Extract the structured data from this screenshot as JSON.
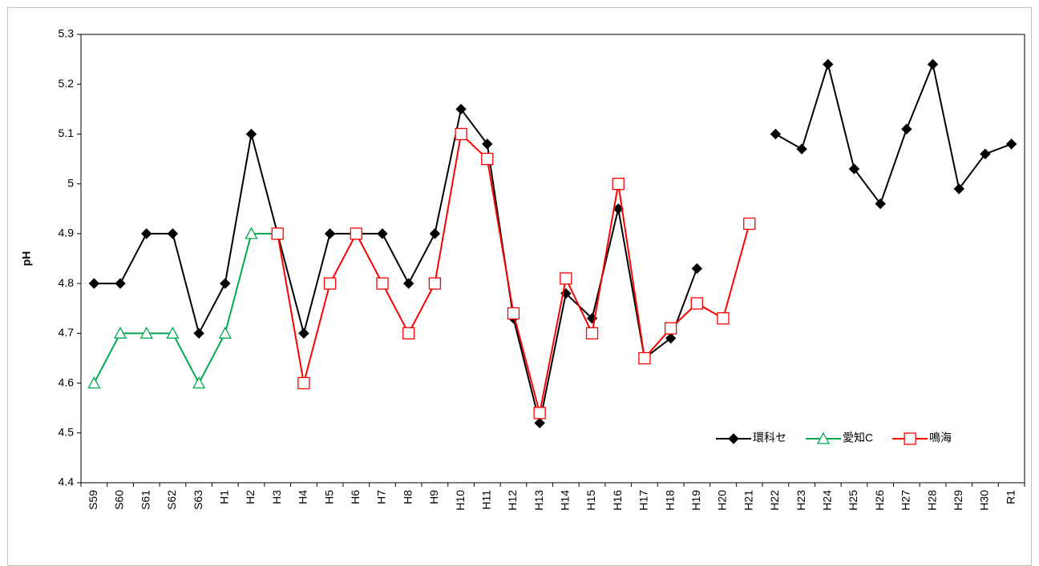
{
  "chart_data": {
    "type": "line",
    "y_label": "pH",
    "categories": [
      "S59",
      "S60",
      "S61",
      "S62",
      "S63",
      "H1",
      "H2",
      "H3",
      "H4",
      "H5",
      "H6",
      "H7",
      "H8",
      "H9",
      "H10",
      "H11",
      "H12",
      "H13",
      "H14",
      "H15",
      "H16",
      "H17",
      "H18",
      "H19",
      "H20",
      "H21",
      "H22",
      "H23",
      "H24",
      "H25",
      "H26",
      "H27",
      "H28",
      "H29",
      "H30",
      "R1"
    ],
    "series": [
      {
        "name": "環科セ",
        "color": "#000000",
        "marker": "diamond",
        "values": [
          4.8,
          4.8,
          4.9,
          4.9,
          4.7,
          4.8,
          5.1,
          4.9,
          4.7,
          4.9,
          4.9,
          4.9,
          4.8,
          4.9,
          5.15,
          5.08,
          4.73,
          4.52,
          4.78,
          4.73,
          4.95,
          4.65,
          4.69,
          4.83,
          null,
          null,
          5.1,
          5.07,
          5.24,
          5.03,
          4.96,
          5.11,
          5.24,
          4.99,
          5.06,
          5.08
        ]
      },
      {
        "name": "愛知C",
        "color": "#00a84f",
        "marker": "triangle",
        "values": [
          4.6,
          4.7,
          4.7,
          4.7,
          4.6,
          4.7,
          4.9,
          4.9,
          null,
          null,
          null,
          null,
          null,
          null,
          null,
          null,
          null,
          null,
          null,
          null,
          null,
          null,
          null,
          null,
          null,
          null,
          null,
          null,
          null,
          null,
          null,
          null,
          null,
          null,
          null,
          null
        ]
      },
      {
        "name": "鳴海",
        "color": "#ff0000",
        "marker": "square",
        "values": [
          null,
          null,
          null,
          null,
          null,
          null,
          null,
          4.9,
          4.6,
          4.8,
          4.9,
          4.8,
          4.7,
          4.8,
          5.1,
          5.05,
          4.74,
          4.54,
          4.81,
          4.7,
          5.0,
          4.65,
          4.71,
          4.76,
          4.73,
          4.92,
          null,
          null,
          null,
          null,
          null,
          null,
          null,
          null,
          null,
          null
        ]
      }
    ],
    "ylim": [
      4.4,
      5.3
    ],
    "yticks": [
      4.4,
      4.5,
      4.6,
      4.7,
      4.8,
      4.9,
      5,
      5.1,
      5.2,
      5.3
    ],
    "grid": false,
    "legend": "lower-right"
  }
}
